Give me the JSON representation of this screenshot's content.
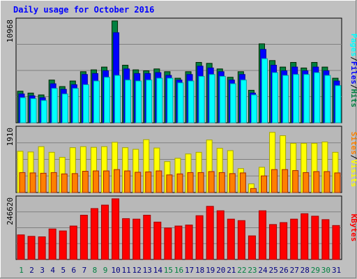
{
  "chart_data": [
    {
      "type": "bar",
      "title": "Daily usage for October 2016",
      "categories": [
        "1",
        "2",
        "3",
        "4",
        "5",
        "6",
        "7",
        "8",
        "9",
        "10",
        "11",
        "12",
        "13",
        "14",
        "15",
        "16",
        "17",
        "18",
        "19",
        "20",
        "21",
        "22",
        "23",
        "24",
        "25",
        "26",
        "27",
        "28",
        "29",
        "30",
        "31"
      ],
      "weekend_days": [
        "1",
        "8",
        "9",
        "15",
        "16",
        "22",
        "23",
        "29",
        "30"
      ],
      "ylabel_parts": [
        "Pages",
        "/",
        "Files",
        "/",
        "Hits"
      ],
      "ymax_label": "10968",
      "ylim": [
        0,
        10968
      ],
      "series": [
        {
          "name": "Hits",
          "color": "#008040",
          "values": [
            3400,
            3200,
            3000,
            4600,
            3900,
            4500,
            5500,
            5700,
            6000,
            10968,
            6200,
            5700,
            5600,
            5800,
            5500,
            4800,
            5500,
            6500,
            6400,
            5800,
            4900,
            5500,
            3500,
            8500,
            6700,
            6000,
            6500,
            5900,
            6500,
            6000,
            4800
          ]
        },
        {
          "name": "Files",
          "color": "#0000ff",
          "values": [
            3100,
            2900,
            2700,
            4200,
            3600,
            4100,
            5200,
            5300,
            5600,
            9700,
            5800,
            5300,
            5300,
            5400,
            5100,
            4600,
            5200,
            6100,
            5900,
            5500,
            4600,
            5200,
            3200,
            7900,
            6200,
            5600,
            6000,
            5600,
            6000,
            5600,
            4500
          ]
        },
        {
          "name": "Pages",
          "color": "#00ffff",
          "values": [
            2700,
            2600,
            2400,
            3700,
            3100,
            3700,
            4100,
            4500,
            4900,
            5100,
            4600,
            4500,
            4600,
            4800,
            4800,
            4300,
            4500,
            5000,
            5200,
            5000,
            4200,
            4600,
            3000,
            6900,
            5400,
            5100,
            5200,
            5200,
            5400,
            5100,
            4000
          ]
        }
      ]
    },
    {
      "type": "bar",
      "ylabel_parts": [
        "Sites",
        "/",
        "Visits"
      ],
      "ymax_label": "1910",
      "ylim": [
        0,
        1910
      ],
      "series": [
        {
          "name": "Visits",
          "color": "#ffff00",
          "values": [
            1240,
            1220,
            1380,
            1210,
            1060,
            1350,
            1380,
            1360,
            1380,
            1510,
            1350,
            1300,
            1590,
            1340,
            930,
            1030,
            1160,
            1210,
            1580,
            1330,
            1260,
            720,
            260,
            760,
            1810,
            1710,
            1480,
            1480,
            1480,
            1520,
            1210
          ]
        },
        {
          "name": "Sites",
          "color": "#ff8000",
          "values": [
            600,
            590,
            580,
            600,
            560,
            570,
            640,
            650,
            650,
            690,
            650,
            610,
            620,
            650,
            530,
            560,
            600,
            600,
            630,
            600,
            570,
            590,
            120,
            500,
            690,
            690,
            660,
            600,
            630,
            630,
            590
          ]
        }
      ]
    },
    {
      "type": "bar",
      "ylabel_parts": [
        "KBytes"
      ],
      "ymax_label": "246620",
      "ylim": [
        0,
        246620
      ],
      "series": [
        {
          "name": "KBytes",
          "color": "#ff0000",
          "values": [
            100000,
            94000,
            92000,
            124000,
            116000,
            136000,
            180000,
            207000,
            221000,
            246620,
            166000,
            164000,
            180000,
            152000,
            128000,
            136000,
            140000,
            178000,
            216000,
            198000,
            164000,
            158000,
            96000,
            198000,
            142000,
            150000,
            164000,
            186000,
            176000,
            162000,
            138000
          ]
        }
      ]
    }
  ],
  "colors": {
    "background": "#c0c0c0",
    "plot_background": "#b8b8b8",
    "grid": "#808080",
    "title": "#0000ff",
    "day_label": "#000080",
    "weekend_label": "#008040",
    "axis_text": "#000000"
  }
}
